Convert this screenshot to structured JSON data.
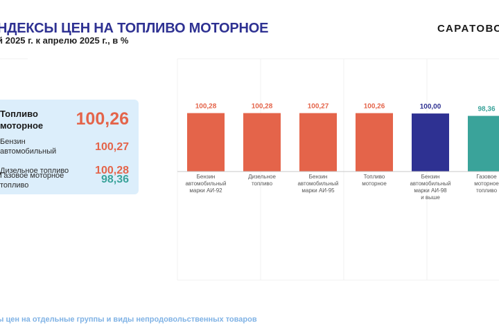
{
  "header": {
    "title": "НДЕКСЫ ЦЕН НА ТОПЛИВО МОТОРНОЕ",
    "subtitle": "й 2025 г. к апрелю 2025 г., в %",
    "brand": "САРАТОВС"
  },
  "summary": {
    "items": [
      {
        "label": [
          "Топливо",
          "моторное"
        ],
        "value": "100,26",
        "color": "#e4644a"
      },
      {
        "label": [
          "Бензин",
          "автомобильный"
        ],
        "value": "100,27",
        "color": "#e4644a"
      },
      {
        "label": [
          "Дизельное топливо"
        ],
        "value": "100,28",
        "color": "#e4644a"
      },
      {
        "label": [
          "Газовое моторное",
          "топливо"
        ],
        "value": "98,36",
        "color": "#3aa39a"
      }
    ]
  },
  "footer": {
    "text": "ы цен на отдельные группы и виды непродовольственных товаров"
  },
  "chart_data": {
    "type": "bar",
    "categories": [
      [
        "Бензин",
        "автомобильный",
        "марки АИ-92"
      ],
      [
        "Дизельное",
        "топливо"
      ],
      [
        "Бензин",
        "автомобильный",
        "марки АИ-95"
      ],
      [
        "Топливо",
        "моторное"
      ],
      [
        "Бензин",
        "автомобильный",
        "марки АИ-98",
        "и выше"
      ],
      [
        "Газовое",
        "моторное",
        "топливо"
      ]
    ],
    "values": [
      100.28,
      100.28,
      100.27,
      100.26,
      100.0,
      98.36
    ],
    "value_labels": [
      "100,28",
      "100,28",
      "100,27",
      "100,26",
      "100,00",
      "98,36"
    ],
    "colors": [
      "#e4644a",
      "#e4644a",
      "#e4644a",
      "#e4644a",
      "#2e3192",
      "#3aa39a"
    ],
    "title": "",
    "xlabel": "",
    "ylabel": "",
    "ylim": [
      60,
      101
    ],
    "grid": true,
    "legend": "none"
  }
}
